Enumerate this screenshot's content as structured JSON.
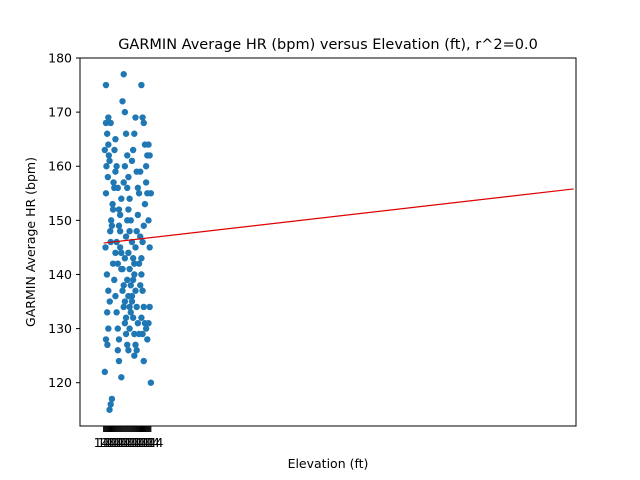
{
  "chart_data": {
    "type": "scatter",
    "title": "GARMIN Average HR (bpm) versus Elevation (ft), r^2=0.0",
    "xlabel": "Elevation (ft)",
    "ylabel": "GARMIN Average HR (bpm)",
    "xlim": [
      -1,
      20
    ],
    "ylim": [
      112,
      180
    ],
    "yticks": [
      120,
      130,
      140,
      150,
      160,
      170,
      180
    ],
    "xtick_label_overlap": "14",
    "grid": false,
    "point_color": "#1f77b4",
    "trendline": {
      "color": "#dd0000",
      "x": [
        0,
        19.9
      ],
      "y": [
        145.8,
        155.8
      ]
    },
    "series_note": "dense cluster of points spanning x 0 to 2, y 115 to 177",
    "points": [
      [
        0.05,
        122
      ],
      [
        0.1,
        175
      ],
      [
        0.2,
        169
      ],
      [
        0.3,
        168
      ],
      [
        0.25,
        115
      ],
      [
        0.3,
        116
      ],
      [
        0.35,
        117
      ],
      [
        0.2,
        130
      ],
      [
        0.15,
        133
      ],
      [
        0.1,
        155
      ],
      [
        0.12,
        160
      ],
      [
        0.18,
        158
      ],
      [
        0.22,
        162
      ],
      [
        0.28,
        148
      ],
      [
        0.08,
        145
      ],
      [
        0.14,
        140
      ],
      [
        0.2,
        137
      ],
      [
        0.26,
        135
      ],
      [
        0.1,
        128
      ],
      [
        0.16,
        127
      ],
      [
        0.32,
        150
      ],
      [
        0.38,
        153
      ],
      [
        0.42,
        157
      ],
      [
        0.46,
        163
      ],
      [
        0.5,
        165
      ],
      [
        0.55,
        160
      ],
      [
        0.6,
        156
      ],
      [
        0.65,
        152
      ],
      [
        0.7,
        148
      ],
      [
        0.75,
        144
      ],
      [
        0.8,
        141
      ],
      [
        0.85,
        138
      ],
      [
        0.9,
        135
      ],
      [
        0.95,
        132
      ],
      [
        0.4,
        142
      ],
      [
        0.45,
        139
      ],
      [
        0.5,
        136
      ],
      [
        0.55,
        133
      ],
      [
        0.6,
        130
      ],
      [
        0.65,
        128
      ],
      [
        0.6,
        126
      ],
      [
        0.65,
        124
      ],
      [
        0.75,
        121
      ],
      [
        0.8,
        172
      ],
      [
        0.85,
        177
      ],
      [
        0.9,
        170
      ],
      [
        0.95,
        166
      ],
      [
        1.0,
        162
      ],
      [
        1.05,
        158
      ],
      [
        1.1,
        154
      ],
      [
        1.15,
        150
      ],
      [
        1.2,
        146
      ],
      [
        1.25,
        143
      ],
      [
        1.3,
        140
      ],
      [
        1.35,
        137
      ],
      [
        1.4,
        134
      ],
      [
        1.45,
        131
      ],
      [
        1.5,
        129
      ],
      [
        1.0,
        127
      ],
      [
        1.05,
        126
      ],
      [
        1.1,
        130
      ],
      [
        1.15,
        133
      ],
      [
        1.2,
        136
      ],
      [
        1.25,
        139
      ],
      [
        1.3,
        142
      ],
      [
        1.35,
        145
      ],
      [
        1.4,
        148
      ],
      [
        1.45,
        151
      ],
      [
        1.5,
        155
      ],
      [
        1.55,
        159
      ],
      [
        1.3,
        125
      ],
      [
        1.4,
        126
      ],
      [
        1.6,
        175
      ],
      [
        1.65,
        169
      ],
      [
        1.7,
        168
      ],
      [
        1.75,
        164
      ],
      [
        1.8,
        160
      ],
      [
        1.85,
        155
      ],
      [
        1.9,
        150
      ],
      [
        1.95,
        145
      ],
      [
        1.6,
        140
      ],
      [
        1.65,
        137
      ],
      [
        1.7,
        134
      ],
      [
        1.75,
        131
      ],
      [
        1.8,
        130
      ],
      [
        1.85,
        128
      ],
      [
        1.9,
        131
      ],
      [
        1.95,
        134
      ],
      [
        2.0,
        120
      ],
      [
        1.7,
        124
      ],
      [
        2.0,
        155
      ],
      [
        1.95,
        162
      ],
      [
        1.9,
        164
      ],
      [
        1.85,
        162
      ],
      [
        1.8,
        157
      ],
      [
        1.75,
        153
      ],
      [
        1.7,
        149
      ],
      [
        1.65,
        146
      ],
      [
        1.6,
        143
      ],
      [
        1.55,
        147
      ],
      [
        0.5,
        144
      ],
      [
        0.55,
        146
      ],
      [
        0.6,
        142
      ],
      [
        0.7,
        151
      ],
      [
        0.75,
        154
      ],
      [
        0.85,
        157
      ],
      [
        0.9,
        160
      ],
      [
        1.0,
        156
      ],
      [
        1.05,
        152
      ],
      [
        1.1,
        148
      ],
      [
        0.3,
        146
      ],
      [
        0.35,
        149
      ],
      [
        0.4,
        152
      ],
      [
        0.45,
        156
      ],
      [
        0.5,
        159
      ],
      [
        0.25,
        161
      ],
      [
        0.2,
        164
      ],
      [
        0.15,
        166
      ],
      [
        0.1,
        168
      ],
      [
        0.05,
        163
      ],
      [
        1.2,
        161
      ],
      [
        1.25,
        163
      ],
      [
        1.3,
        166
      ],
      [
        1.35,
        169
      ],
      [
        1.4,
        159
      ],
      [
        1.45,
        156
      ],
      [
        1.5,
        142
      ],
      [
        1.55,
        138
      ],
      [
        1.6,
        132
      ],
      [
        1.65,
        129
      ],
      [
        0.9,
        143
      ],
      [
        0.95,
        147
      ],
      [
        1.0,
        150
      ],
      [
        1.05,
        144
      ],
      [
        1.1,
        141
      ],
      [
        1.15,
        138
      ],
      [
        1.2,
        135
      ],
      [
        1.25,
        132
      ],
      [
        1.3,
        129
      ],
      [
        1.35,
        127
      ],
      [
        0.65,
        149
      ],
      [
        0.7,
        145
      ],
      [
        0.75,
        141
      ],
      [
        0.8,
        137
      ],
      [
        0.85,
        134
      ],
      [
        0.9,
        131
      ],
      [
        0.95,
        129
      ],
      [
        1.0,
        139
      ],
      [
        1.05,
        136
      ],
      [
        1.1,
        134
      ]
    ]
  }
}
